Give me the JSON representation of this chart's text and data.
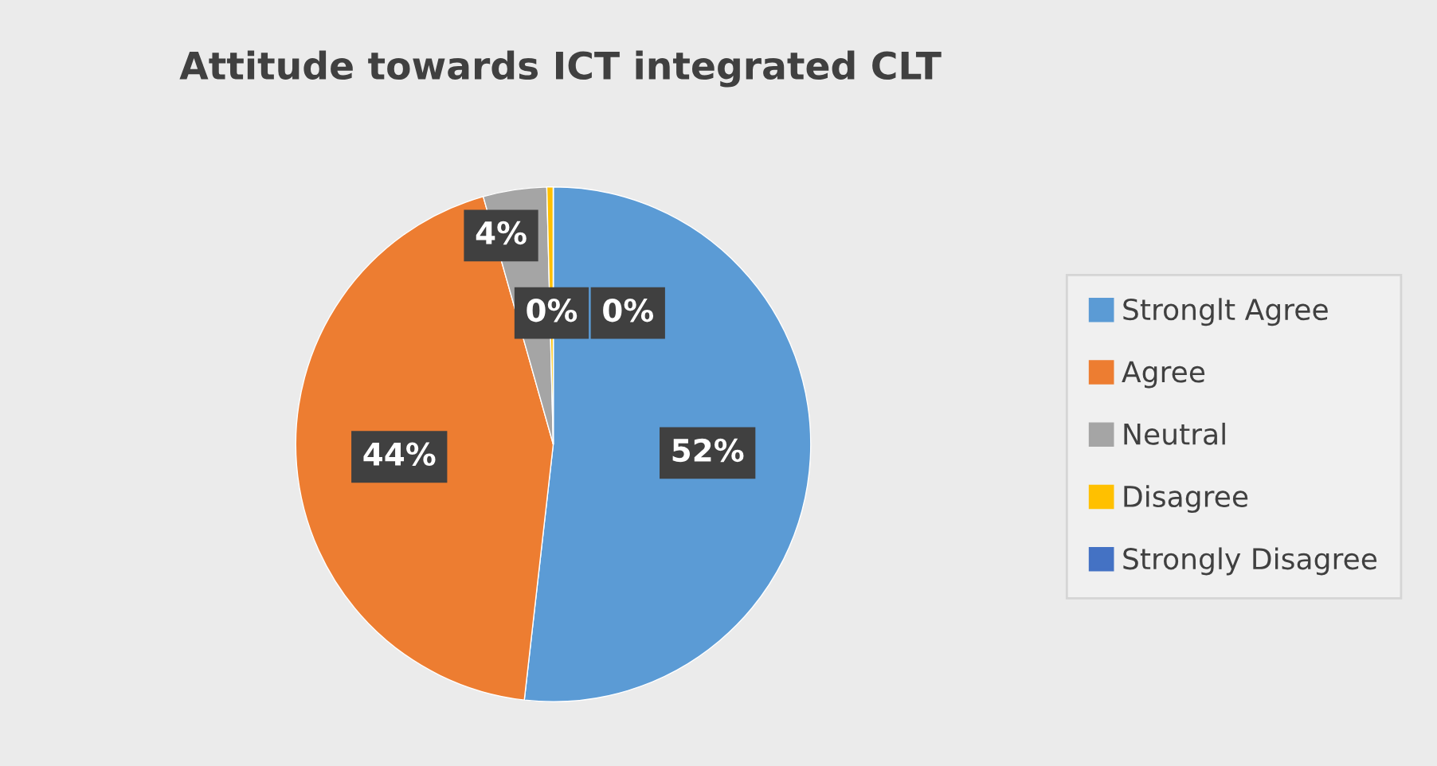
{
  "chart_data": {
    "type": "pie",
    "title": "Attitude towards ICT integrated CLT",
    "categories": [
      "Stronglt Agree",
      "Agree",
      "Neutral",
      "Disagree",
      "Strongly Disagree"
    ],
    "values": [
      52,
      44,
      4,
      0.4,
      0
    ],
    "value_labels": [
      "52%",
      "44%",
      "4%",
      "0%",
      "0%"
    ],
    "colors": [
      "#5b9bd5",
      "#ed7d31",
      "#a5a5a5",
      "#ffc000",
      "#4472c4"
    ],
    "legend": "right"
  }
}
